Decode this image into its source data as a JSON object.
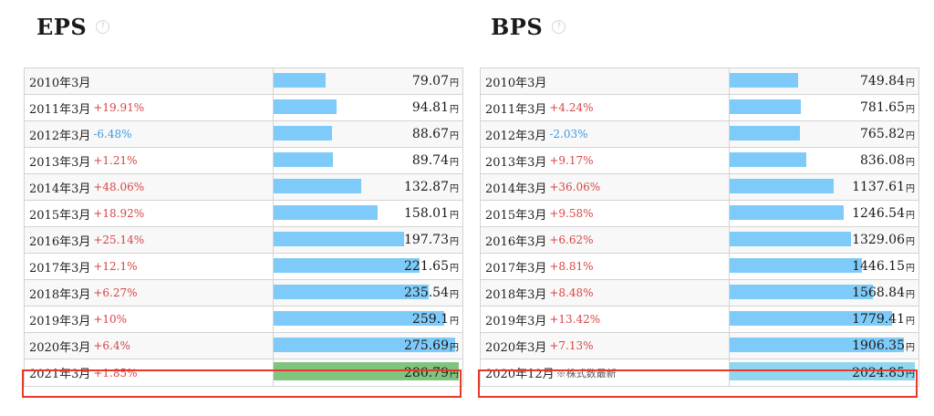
{
  "colors": {
    "bar": "#7ecbf9",
    "bar_highlight_eps": "#7fc57f",
    "bar_highlight_bps": "#8fd6ee",
    "increase": "#d64545",
    "decrease": "#3d9be0",
    "highlight_border": "#e8372b"
  },
  "help_icon": "?",
  "currency_unit": "円",
  "chart_data": [
    {
      "type": "bar",
      "title": "EPS",
      "max": 280.79,
      "rows": [
        {
          "period": "2010年3月",
          "change": "",
          "value": 79.07,
          "value_text": "79.07"
        },
        {
          "period": "2011年3月",
          "change": "+19.91%",
          "value": 94.81,
          "value_text": "94.81"
        },
        {
          "period": "2012年3月",
          "change": "-6.48%",
          "value": 88.67,
          "value_text": "88.67"
        },
        {
          "period": "2013年3月",
          "change": "+1.21%",
          "value": 89.74,
          "value_text": "89.74"
        },
        {
          "period": "2014年3月",
          "change": "+48.06%",
          "value": 132.87,
          "value_text": "132.87"
        },
        {
          "period": "2015年3月",
          "change": "+18.92%",
          "value": 158.01,
          "value_text": "158.01"
        },
        {
          "period": "2016年3月",
          "change": "+25.14%",
          "value": 197.73,
          "value_text": "197.73"
        },
        {
          "period": "2017年3月",
          "change": "+12.1%",
          "value": 221.65,
          "value_text": "221.65"
        },
        {
          "period": "2018年3月",
          "change": "+6.27%",
          "value": 235.54,
          "value_text": "235.54"
        },
        {
          "period": "2019年3月",
          "change": "+10%",
          "value": 259.1,
          "value_text": "259.1"
        },
        {
          "period": "2020年3月",
          "change": "+6.4%",
          "value": 275.69,
          "value_text": "275.69"
        },
        {
          "period": "2021年3月",
          "change": "+1.85%",
          "value": 280.79,
          "value_text": "280.79",
          "highlight": true
        }
      ]
    },
    {
      "type": "bar",
      "title": "BPS",
      "max": 2024.85,
      "rows": [
        {
          "period": "2010年3月",
          "change": "",
          "value": 749.84,
          "value_text": "749.84"
        },
        {
          "period": "2011年3月",
          "change": "+4.24%",
          "value": 781.65,
          "value_text": "781.65"
        },
        {
          "period": "2012年3月",
          "change": "-2.03%",
          "value": 765.82,
          "value_text": "765.82"
        },
        {
          "period": "2013年3月",
          "change": "+9.17%",
          "value": 836.08,
          "value_text": "836.08"
        },
        {
          "period": "2014年3月",
          "change": "+36.06%",
          "value": 1137.61,
          "value_text": "1137.61"
        },
        {
          "period": "2015年3月",
          "change": "+9.58%",
          "value": 1246.54,
          "value_text": "1246.54"
        },
        {
          "period": "2016年3月",
          "change": "+6.62%",
          "value": 1329.06,
          "value_text": "1329.06"
        },
        {
          "period": "2017年3月",
          "change": "+8.81%",
          "value": 1446.15,
          "value_text": "1446.15"
        },
        {
          "period": "2018年3月",
          "change": "+8.48%",
          "value": 1568.84,
          "value_text": "1568.84"
        },
        {
          "period": "2019年3月",
          "change": "+13.42%",
          "value": 1779.41,
          "value_text": "1779.41"
        },
        {
          "period": "2020年3月",
          "change": "+7.13%",
          "value": 1906.35,
          "value_text": "1906.35"
        },
        {
          "period": "2020年12月",
          "change": "",
          "note": "※株式数最新",
          "value": 2024.85,
          "value_text": "2024.85",
          "highlight": true
        }
      ]
    }
  ]
}
